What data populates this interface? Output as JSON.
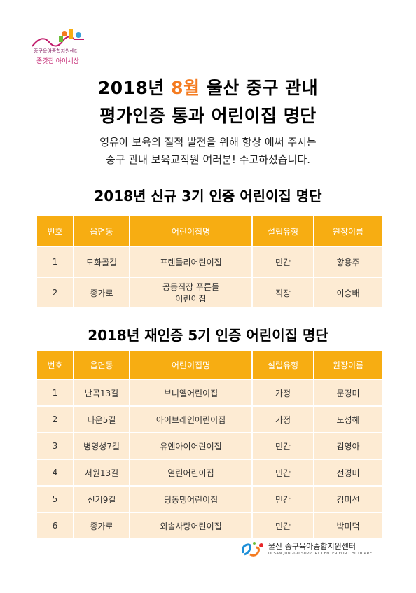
{
  "logo": {
    "line1": "중구육아종합지원센터",
    "line2": "종갓집 아이세상"
  },
  "title": {
    "line1_pre": "2018년 ",
    "line1_accent": "8월",
    "line1_post": " 울산 중구 관내",
    "line2": "평가인증 통과 어린이집 명단",
    "accent_color": "#f47b20"
  },
  "intro": {
    "line1": "영유아 보육의 질적 발전을 위해 항상 애써 주시는",
    "line2": "중구 관내 보육교직원 여러분! 수고하셨습니다."
  },
  "headers": [
    "번호",
    "읍면동",
    "어린이집명",
    "설립유형",
    "원장이름"
  ],
  "section_new": {
    "title": "2018년 신규 3기 인증 어린이집 명단",
    "rows": [
      {
        "no": "1",
        "area": "도화골길",
        "name": "프렌들리어린이집",
        "type": "민간",
        "director": "황용주"
      },
      {
        "no": "2",
        "area": "종가로",
        "name_line1": "공동직장 푸른들",
        "name_line2": "어린이집",
        "type": "직장",
        "director": "이승배"
      }
    ]
  },
  "section_re": {
    "title": "2018년 재인증 5기 인증 어린이집 명단",
    "rows": [
      {
        "no": "1",
        "area": "난곡13길",
        "name": "브니엘어린이집",
        "type": "가정",
        "director": "문경미"
      },
      {
        "no": "2",
        "area": "다운5길",
        "name": "아이브레인어린이집",
        "type": "가정",
        "director": "도성혜"
      },
      {
        "no": "3",
        "area": "병영성7길",
        "name": "유엔아이어린이집",
        "type": "민간",
        "director": "김영아"
      },
      {
        "no": "4",
        "area": "서원13길",
        "name": "열린어린이집",
        "type": "민간",
        "director": "전경미"
      },
      {
        "no": "5",
        "area": "신기9길",
        "name": "딩동댕어린이집",
        "type": "민간",
        "director": "김미선"
      },
      {
        "no": "6",
        "area": "종가로",
        "name": "외솔사랑어린이집",
        "type": "민간",
        "director": "박미덕"
      }
    ]
  },
  "footer": {
    "name_ko": "울산 중구육아종합지원센터",
    "name_en": "ULSAN JUNGGU SUPPORT CENTER FOR CHILDCARE"
  },
  "colors": {
    "header_bg": "#f7ad12",
    "row_bg": "#fdebd3"
  }
}
